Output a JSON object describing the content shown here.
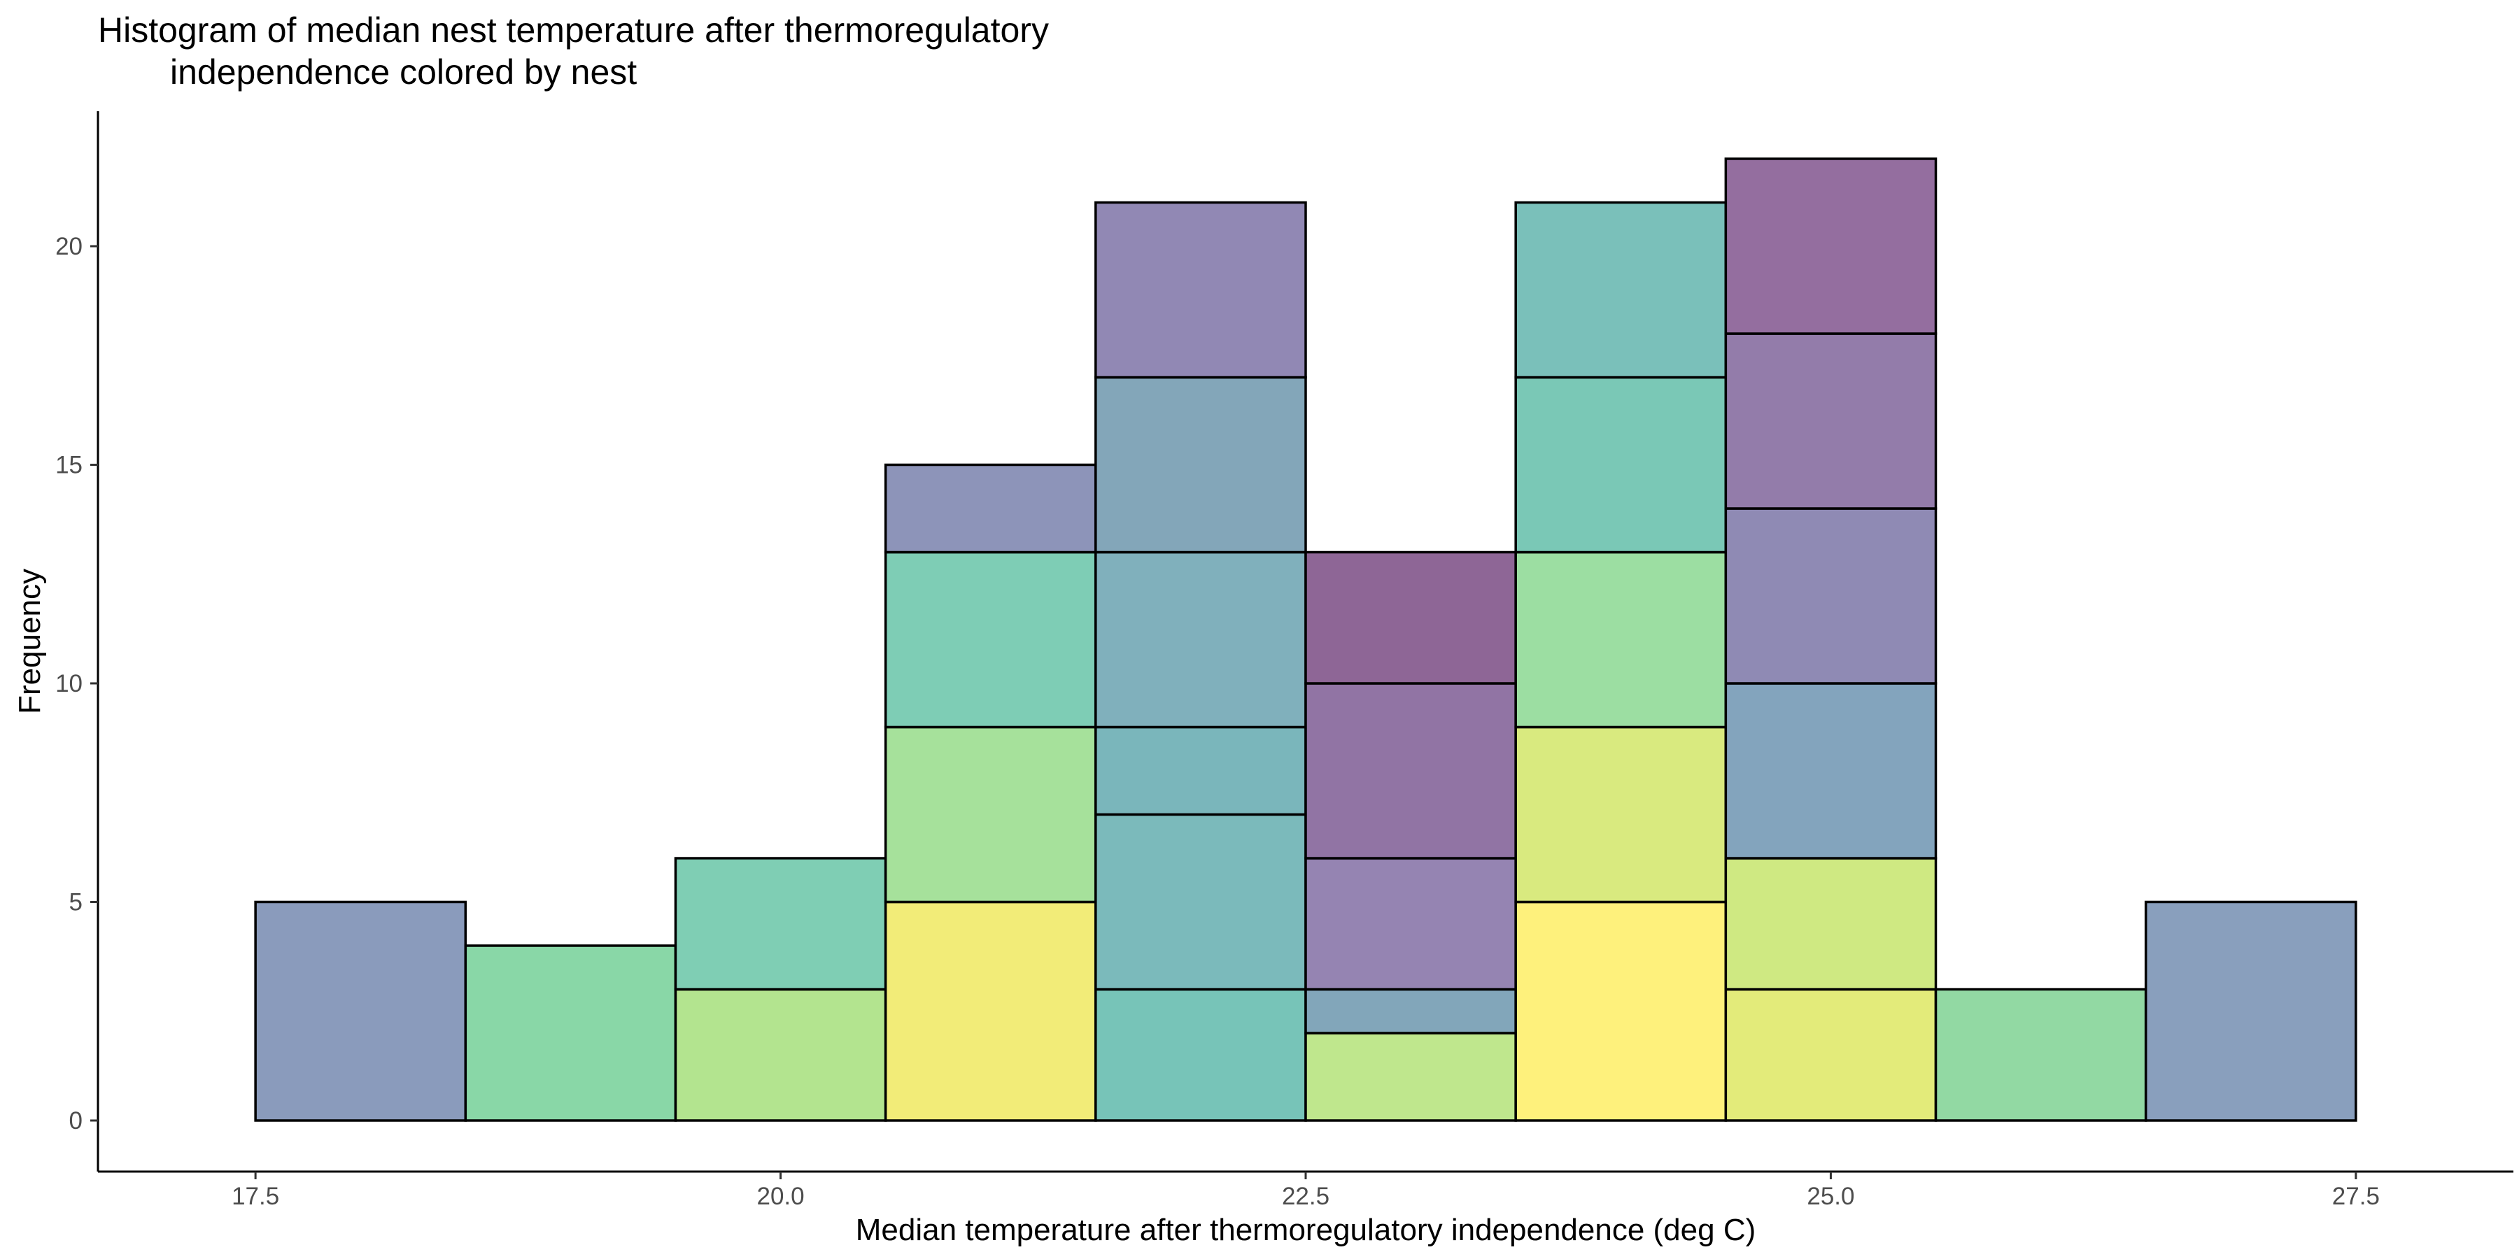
{
  "chart_data": {
    "type": "bar",
    "stacked": true,
    "title_lines": [
      "Histogram of median nest temperature after thermoregulatory",
      "independence colored by nest"
    ],
    "xlabel": "Median temperature after thermoregulatory independence (deg C)",
    "ylabel": "Frequency",
    "xlim": [
      16.75,
      28.25
    ],
    "ylim": [
      0,
      22
    ],
    "x_ticks": [
      17.5,
      20.0,
      22.5,
      25.0,
      27.5
    ],
    "x_tick_labels": [
      "17.5",
      "20.0",
      "22.5",
      "25.0",
      "27.5"
    ],
    "y_ticks": [
      0,
      5,
      10,
      15,
      20
    ],
    "y_tick_labels": [
      "0",
      "5",
      "10",
      "15",
      "20"
    ],
    "bin_width": 1,
    "bins": [
      {
        "x_start": 17.5,
        "x_end": 18.5,
        "segments": [
          {
            "count": 5,
            "color": "#8a9bbc"
          }
        ]
      },
      {
        "x_start": 18.5,
        "x_end": 19.5,
        "segments": [
          {
            "count": 4,
            "color": "#89d7a7"
          }
        ]
      },
      {
        "x_start": 19.5,
        "x_end": 20.5,
        "segments": [
          {
            "count": 3,
            "color": "#b3e48f"
          },
          {
            "count": 3,
            "color": "#7fceb4"
          }
        ]
      },
      {
        "x_start": 20.5,
        "x_end": 21.5,
        "segments": [
          {
            "count": 5,
            "color": "#f2ec78"
          },
          {
            "count": 4,
            "color": "#a6e19b"
          },
          {
            "count": 4,
            "color": "#7ecdb5"
          },
          {
            "count": 2,
            "color": "#8d94b9"
          }
        ]
      },
      {
        "x_start": 21.5,
        "x_end": 22.5,
        "segments": [
          {
            "count": 3,
            "color": "#77c4b8"
          },
          {
            "count": 4,
            "color": "#7bbabb"
          },
          {
            "count": 2,
            "color": "#7ab6bb"
          },
          {
            "count": 4,
            "color": "#80b0bc"
          },
          {
            "count": 4,
            "color": "#83a6b9"
          },
          {
            "count": 4,
            "color": "#9188b4"
          }
        ]
      },
      {
        "x_start": 22.5,
        "x_end": 23.5,
        "segments": [
          {
            "count": 2,
            "color": "#bfe78d"
          },
          {
            "count": 1,
            "color": "#82a6ba"
          },
          {
            "count": 3,
            "color": "#9584b2"
          },
          {
            "count": 4,
            "color": "#9174a4"
          },
          {
            "count": 3,
            "color": "#8e6696"
          }
        ]
      },
      {
        "x_start": 23.5,
        "x_end": 24.5,
        "segments": [
          {
            "count": 5,
            "color": "#fef17c"
          },
          {
            "count": 4,
            "color": "#d9ea7f"
          },
          {
            "count": 4,
            "color": "#9cdea2"
          },
          {
            "count": 4,
            "color": "#7ac8b6"
          },
          {
            "count": 4,
            "color": "#7ac0ba"
          }
        ]
      },
      {
        "x_start": 24.5,
        "x_end": 25.5,
        "segments": [
          {
            "count": 3,
            "color": "#e3eb7a"
          },
          {
            "count": 3,
            "color": "#cfe982"
          },
          {
            "count": 4,
            "color": "#83a4bd"
          },
          {
            "count": 4,
            "color": "#8f8ab4"
          },
          {
            "count": 4,
            "color": "#937caa"
          },
          {
            "count": 4,
            "color": "#946e9f"
          }
        ]
      },
      {
        "x_start": 25.5,
        "x_end": 26.5,
        "segments": [
          {
            "count": 3,
            "color": "#92d9a3"
          }
        ]
      },
      {
        "x_start": 26.5,
        "x_end": 27.5,
        "segments": [
          {
            "count": 5,
            "color": "#899fbd"
          }
        ]
      }
    ],
    "grid": false,
    "legend": "none"
  }
}
